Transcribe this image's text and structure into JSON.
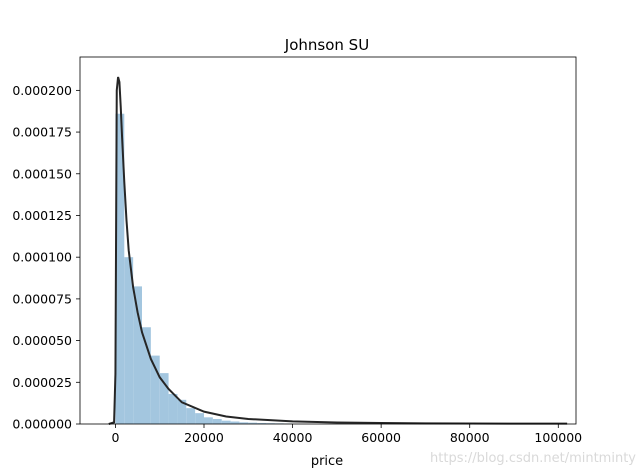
{
  "chart_data": {
    "type": "bar",
    "title": "Johnson SU",
    "xlabel": "price",
    "ylabel": "",
    "xlim": [
      -8000,
      104000
    ],
    "ylim": [
      0,
      0.00022
    ],
    "grid": false,
    "x_ticks": [
      0,
      20000,
      40000,
      60000,
      80000,
      100000
    ],
    "x_tick_labels": [
      "0",
      "20000",
      "40000",
      "60000",
      "80000",
      "100000"
    ],
    "y_ticks": [
      0,
      2.5e-05,
      5e-05,
      7.5e-05,
      0.0001,
      0.000125,
      0.00015,
      0.000175,
      0.0002
    ],
    "y_tick_labels": [
      "0.000000",
      "0.000025",
      "0.000050",
      "0.000075",
      "0.000100",
      "0.000125",
      "0.000150",
      "0.000175",
      "0.000200"
    ],
    "histogram": {
      "bin_start": 0,
      "bin_width": 2000,
      "values": [
        0.000186,
        0.0001,
        8.25e-05,
        5.8e-05,
        4.1e-05,
        3.05e-05,
        1.8e-05,
        1.45e-05,
        9.5e-06,
        6.5e-06,
        4e-06,
        3e-06,
        2e-06,
        1.5e-06,
        1e-06,
        8e-07,
        6e-07,
        5e-07,
        4e-07,
        3e-07
      ]
    },
    "fit_curve": {
      "name": "Johnson SU",
      "x": [
        -1500,
        -300,
        0,
        300,
        600,
        900,
        1200,
        1500,
        2000,
        2500,
        3000,
        4000,
        5000,
        6000,
        8000,
        10000,
        12000,
        15000,
        20000,
        25000,
        30000,
        40000,
        50000,
        60000,
        70000,
        80000,
        90000,
        100000,
        102000
      ],
      "y": [
        0,
        1e-06,
        3e-05,
        0.0002,
        0.000208,
        0.000205,
        0.00019,
        0.000172,
        0.000145,
        0.000122,
        0.000104,
        8.2e-05,
        6.7e-05,
        5.5e-05,
        3.9e-05,
        2.8e-05,
        2.1e-05,
        1.3e-05,
        7.4e-06,
        4.5e-06,
        3e-06,
        1.6e-06,
        9e-07,
        6e-07,
        4e-07,
        3e-07,
        2e-07,
        2e-07,
        2e-07
      ]
    },
    "colors": {
      "bars": "#a3c6df",
      "curve": "#262626",
      "axes": "#000000"
    }
  },
  "watermark": "https://blog.csdn.net/mintminty"
}
